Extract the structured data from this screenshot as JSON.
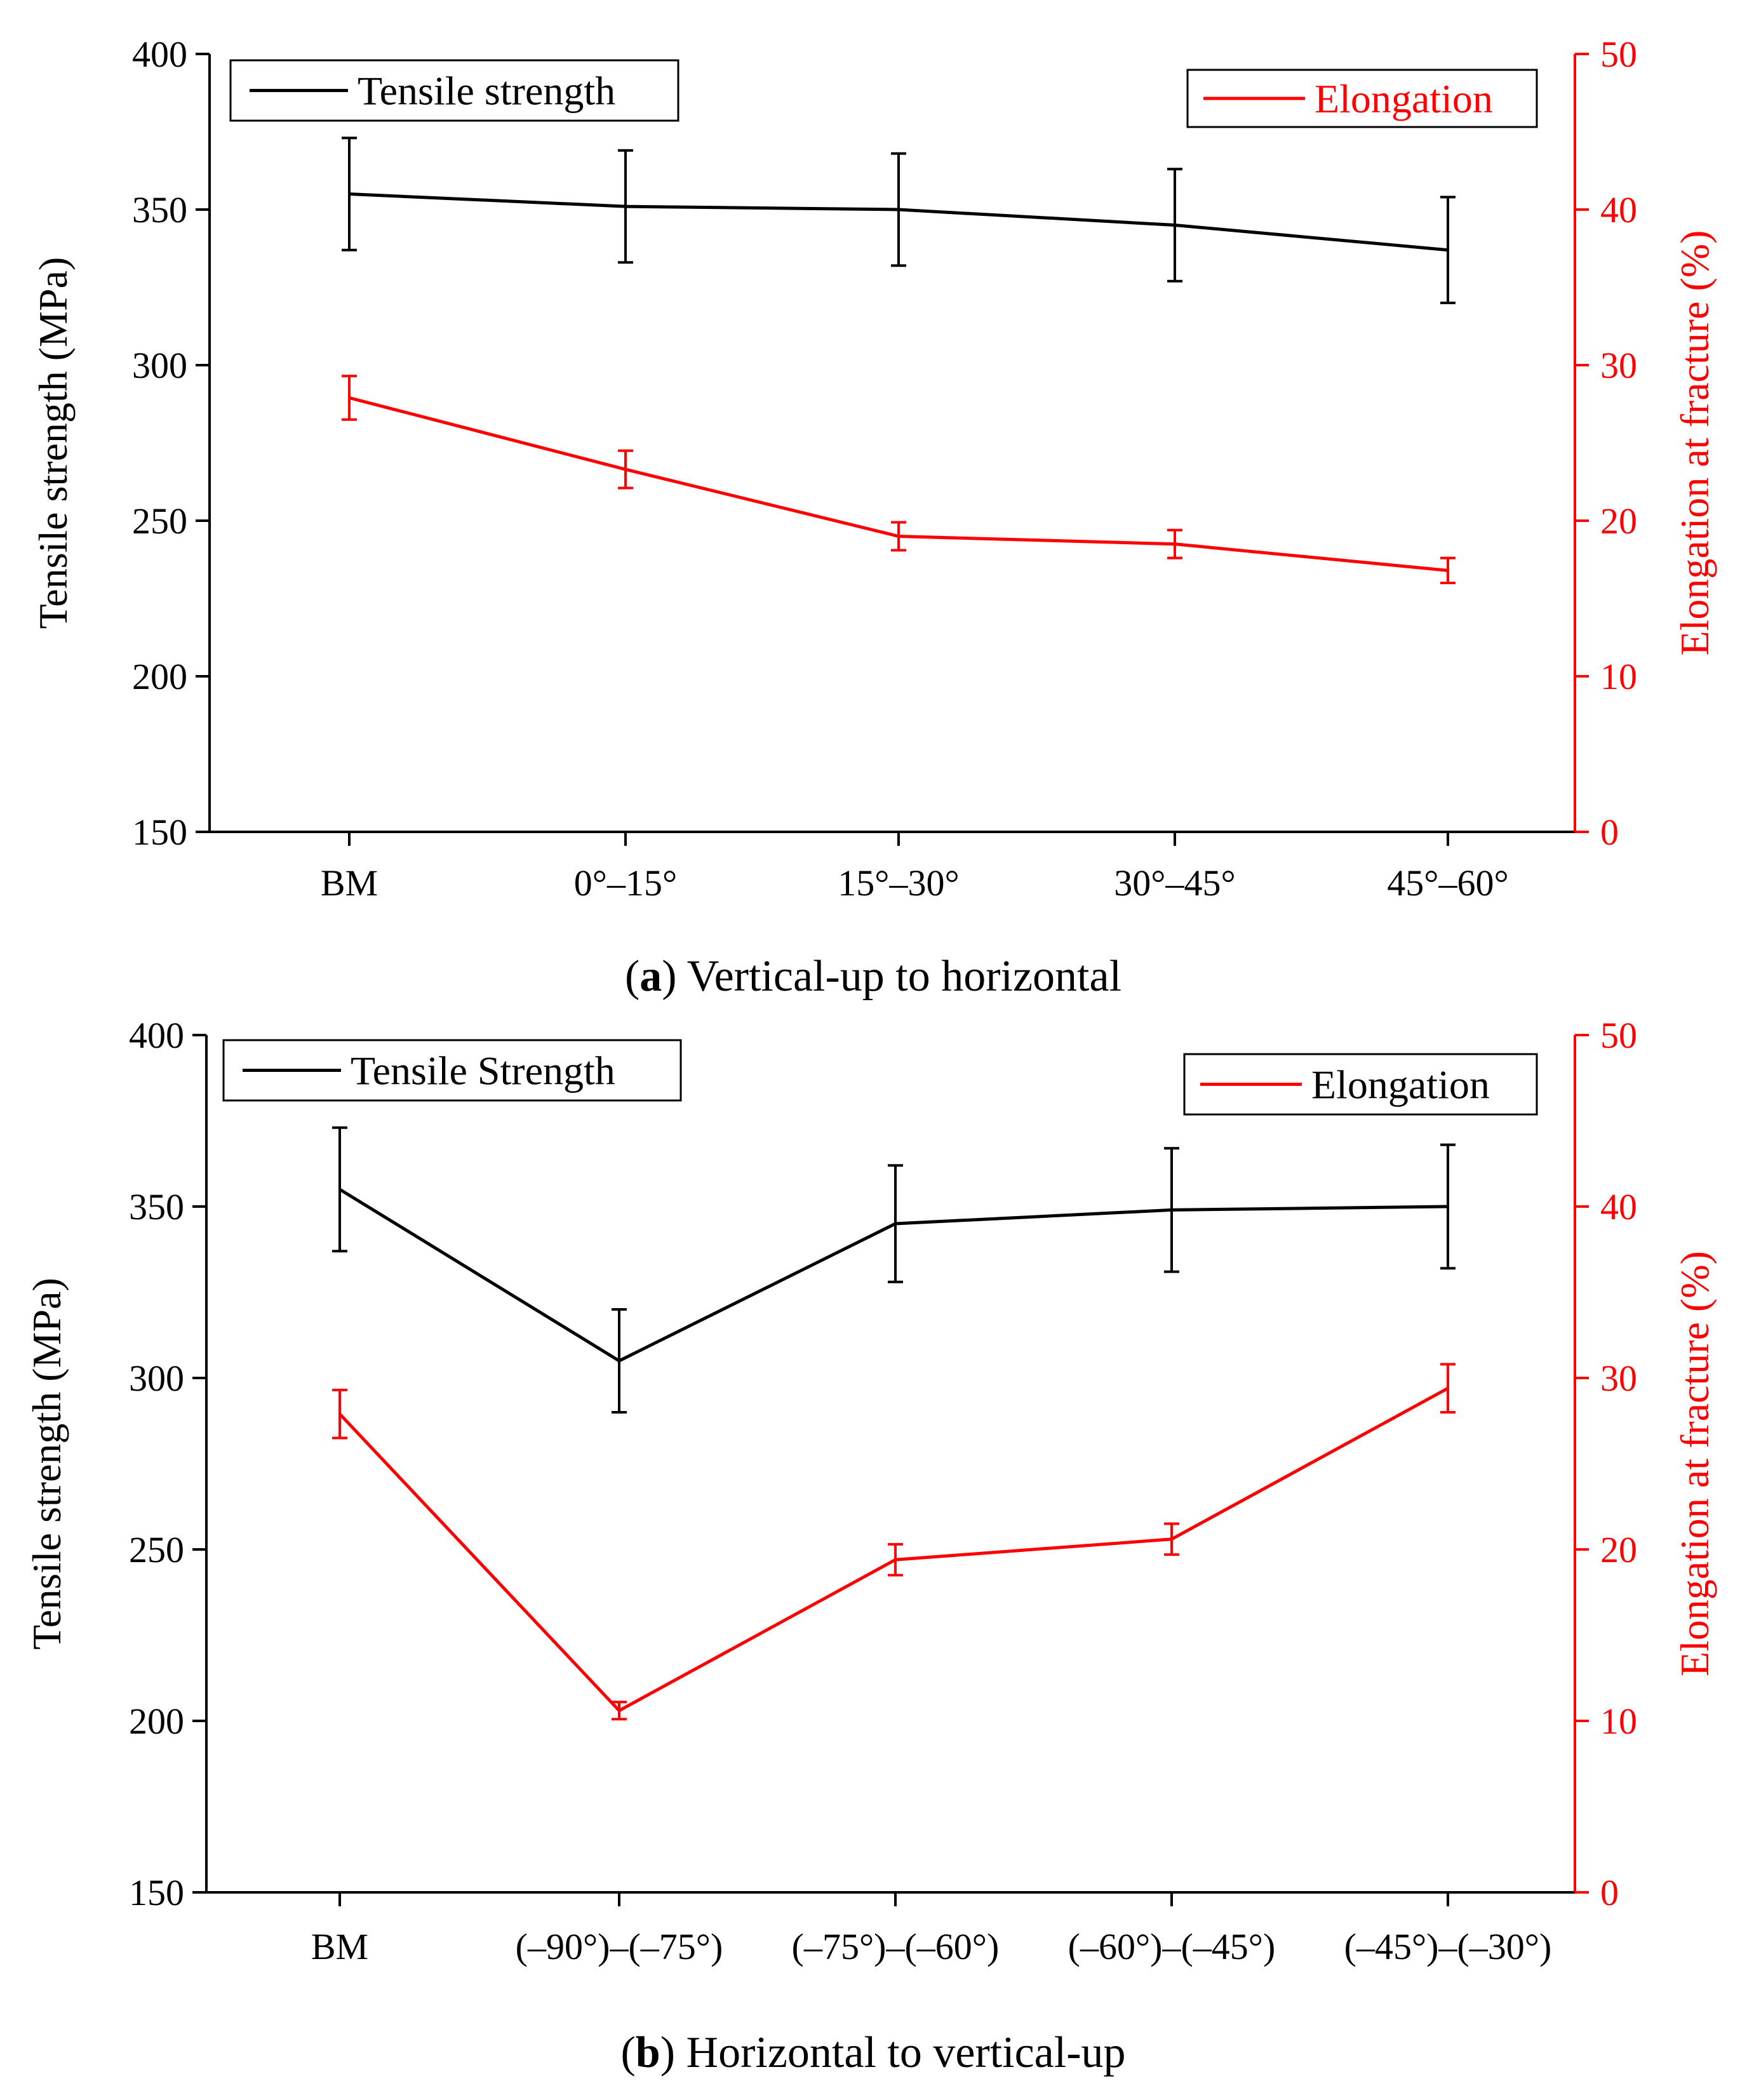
{
  "chart_data": [
    {
      "type": "line",
      "caption_letter": "a",
      "caption_text": "Vertical-up to horizontal",
      "categories": [
        "BM",
        "0°–15°",
        "15°–30°",
        "30°–45°",
        "45°–60°"
      ],
      "ylabel": "Tensile strength (MPa)",
      "y2label": "Elongation at fracture (%)",
      "ylim": [
        150,
        400
      ],
      "y2lim": [
        0,
        50
      ],
      "yticks": [
        "150",
        "200",
        "250",
        "300",
        "350",
        "400"
      ],
      "y2ticks": [
        "0",
        "10",
        "20",
        "30",
        "40",
        "50"
      ],
      "legend_left": "Tensile strength",
      "legend_right": "Elongation",
      "series": [
        {
          "name": "Tensile strength",
          "axis": "left",
          "color": "#000000",
          "values": [
            355,
            351,
            350,
            345,
            337
          ],
          "errors": [
            18,
            18,
            18,
            18,
            17
          ]
        },
        {
          "name": "Elongation",
          "axis": "right",
          "color": "#ff0000",
          "values": [
            27.9,
            23.3,
            19.0,
            18.5,
            16.8
          ],
          "errors": [
            1.4,
            1.2,
            0.9,
            0.9,
            0.8
          ]
        }
      ]
    },
    {
      "type": "line",
      "caption_letter": "b",
      "caption_text": "Horizontal to vertical-up",
      "categories": [
        "BM",
        "(–90°)–(–75°)",
        "(–75°)–(–60°)",
        "(–60°)–(–45°)",
        "(–45°)–(–30°)"
      ],
      "ylabel": "Tensile strength (MPa)",
      "y2label": "Elongation at fracture (%)",
      "ylim": [
        150,
        400
      ],
      "y2lim": [
        0,
        50
      ],
      "yticks": [
        "150",
        "200",
        "250",
        "300",
        "350",
        "400"
      ],
      "y2ticks": [
        "0",
        "10",
        "20",
        "30",
        "40",
        "50"
      ],
      "legend_left": "Tensile Strength",
      "legend_right": "Elongation",
      "series": [
        {
          "name": "Tensile Strength",
          "axis": "left",
          "color": "#000000",
          "values": [
            355,
            305,
            345,
            349,
            350
          ],
          "errors": [
            18,
            15,
            17,
            18,
            18
          ]
        },
        {
          "name": "Elongation",
          "axis": "right",
          "color": "#ff0000",
          "values": [
            27.9,
            10.6,
            19.4,
            20.6,
            29.4
          ],
          "errors": [
            1.4,
            0.5,
            0.9,
            0.9,
            1.4
          ]
        }
      ]
    }
  ]
}
